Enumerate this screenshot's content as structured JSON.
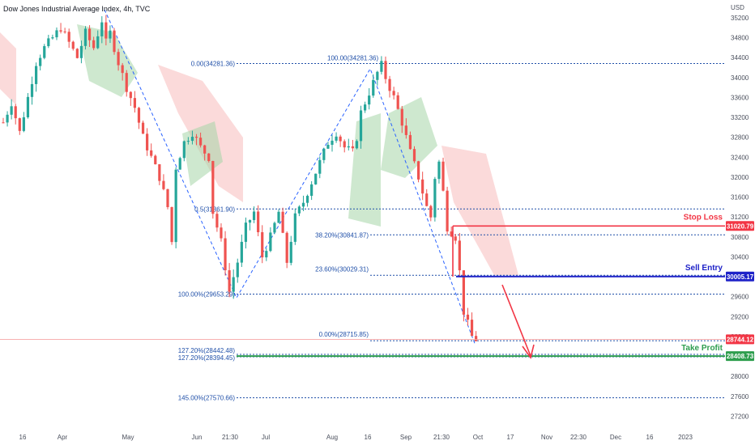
{
  "title": "Dow Jones Industrial Average Index, 4h, TVC",
  "currency": "USD",
  "chart_data": {
    "type": "candlestick",
    "title": "Dow Jones Industrial Average Index, 4h, TVC",
    "ylim": [
      27000,
      35450
    ],
    "y_ticks": [
      35200,
      34800,
      34400,
      34000,
      33600,
      33200,
      32800,
      32400,
      32000,
      31600,
      31200,
      30800,
      30400,
      30000,
      29600,
      29200,
      28800,
      28400,
      28000,
      27600,
      27200
    ],
    "x_ticks": [
      "16",
      "Apr",
      "May",
      "Jun",
      "21:30",
      "Jul",
      "Aug",
      "16",
      "Sep",
      "21:30",
      "Oct",
      "17",
      "Nov",
      "22:30",
      "Dec",
      "16",
      "2023"
    ],
    "close_path": [
      [
        0,
        33100
      ],
      [
        2,
        33500
      ],
      [
        4,
        32900
      ],
      [
        6,
        33600
      ],
      [
        8,
        34300
      ],
      [
        10,
        34600
      ],
      [
        12,
        34800
      ],
      [
        14,
        35000
      ],
      [
        16,
        34700
      ],
      [
        18,
        34400
      ],
      [
        20,
        34900
      ],
      [
        22,
        34600
      ],
      [
        24,
        35150
      ],
      [
        25,
        34700
      ],
      [
        26,
        34900
      ],
      [
        28,
        34300
      ],
      [
        30,
        33800
      ],
      [
        32,
        33400
      ],
      [
        34,
        32800
      ],
      [
        36,
        32400
      ],
      [
        38,
        32000
      ],
      [
        40,
        31400
      ],
      [
        41,
        30700
      ],
      [
        42,
        32200
      ],
      [
        44,
        32700
      ],
      [
        46,
        32900
      ],
      [
        48,
        32600
      ],
      [
        50,
        32400
      ],
      [
        51,
        31300
      ],
      [
        53,
        30700
      ],
      [
        55,
        29700
      ],
      [
        57,
        30300
      ],
      [
        59,
        31000
      ],
      [
        61,
        31300
      ],
      [
        63,
        30400
      ],
      [
        65,
        30800
      ],
      [
        67,
        31300
      ],
      [
        69,
        30300
      ],
      [
        71,
        31200
      ],
      [
        73,
        31500
      ],
      [
        75,
        31900
      ],
      [
        77,
        32300
      ],
      [
        79,
        32700
      ],
      [
        81,
        32900
      ],
      [
        83,
        32600
      ],
      [
        85,
        32500
      ],
      [
        86,
        32800
      ],
      [
        87,
        33300
      ],
      [
        89,
        33700
      ],
      [
        91,
        34100
      ],
      [
        92,
        34250
      ],
      [
        93,
        34000
      ],
      [
        95,
        33600
      ],
      [
        97,
        33100
      ],
      [
        99,
        32500
      ],
      [
        101,
        32000
      ],
      [
        103,
        31400
      ],
      [
        104,
        31200
      ],
      [
        105,
        32000
      ],
      [
        106,
        32300
      ],
      [
        107,
        31700
      ],
      [
        108,
        31000
      ],
      [
        110,
        30800
      ],
      [
        111,
        30100
      ],
      [
        112,
        29300
      ],
      [
        114,
        28800
      ],
      [
        115,
        28744.12
      ]
    ],
    "fib_levels": [
      {
        "label": "0.00(34281.36)",
        "value": 34281.36
      },
      {
        "label": "100.00(34281.36)",
        "value": 34281.36
      },
      {
        "label": "0.5(31361.90)",
        "value": 31361.9
      },
      {
        "label": "38.20%(30841.87)",
        "value": 30841.87
      },
      {
        "label": "23.60%(30029.31)",
        "value": 30029.31
      },
      {
        "label": "100.00%(29653.29)",
        "value": 29653.29
      },
      {
        "label": "0.00%(28715.85)",
        "value": 28715.85
      },
      {
        "label": "127.20%(28442.48)",
        "value": 28442.48
      },
      {
        "label": "127.20%(28394.45)",
        "value": 28394.45
      },
      {
        "label": "145.00%(27570.66)",
        "value": 27570.66
      }
    ],
    "trade_levels": {
      "stop_loss": {
        "label": "Stop Loss",
        "value": 31020.79,
        "tag": "31020.79",
        "color": "#f23645"
      },
      "sell_entry": {
        "label": "Sell Entry",
        "value": 30005.17,
        "tag": "30005.17",
        "color": "#1e22c8"
      },
      "take_profit": {
        "label": "Take Profit",
        "value": 28408.73,
        "tag": "28408.73",
        "color": "#2e9e4e"
      },
      "current": {
        "value": 28744.12,
        "tag": "28744.12",
        "color": "#f23645"
      }
    },
    "colors": {
      "up": "#26a69a",
      "down": "#ef5350",
      "fib": "#1f4fa8",
      "cloud_green": "#a5d6a7",
      "cloud_red": "#f8bbbb"
    }
  }
}
